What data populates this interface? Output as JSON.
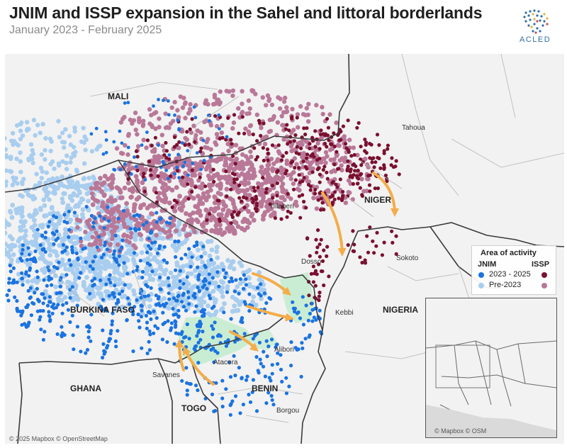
{
  "title": "JNIM and ISSP expansion in the Sahel and littoral borderlands",
  "subtitle": "January 2023 - February 2025",
  "logo": {
    "text": "ACLED",
    "icon": "acled-globe-dots-icon"
  },
  "colors": {
    "jnim_recent": "#1a73e0",
    "jnim_pre": "#a8cdef",
    "issp_recent": "#7a1030",
    "issp_pre": "#b97898",
    "expansion_area": "#c6ecd0",
    "arrow": "#f3ad4a",
    "land": "#f2f2f2",
    "border": "#3a3a3a"
  },
  "labels": {
    "countries": {
      "mali": "MALI",
      "niger": "NIGER",
      "burkina_faso": "BURKINA FASO",
      "nigeria": "NIGERIA",
      "ghana": "GHANA",
      "benin": "BENIN",
      "togo": "TOGO"
    },
    "regions": {
      "tahoua": "Tahoua",
      "tillaberi": "Tillaberi",
      "dosso": "Dosso",
      "sokoto": "Sokoto",
      "kebbi": "Kebbi",
      "alibori": "Alibori",
      "atacora": "Atacora",
      "savanes": "Savanes",
      "borgou": "Borgou"
    }
  },
  "legend": {
    "title": "Area of activity",
    "jnim_header": "JNIM",
    "issp_header": "ISSP",
    "row1_label": "2023 - 2025",
    "row2_label": "Pre-2023"
  },
  "attribution": {
    "main": "© 2025 Mapbox © OpenStreetMap",
    "inset": "© Mapbox © OSM"
  }
}
